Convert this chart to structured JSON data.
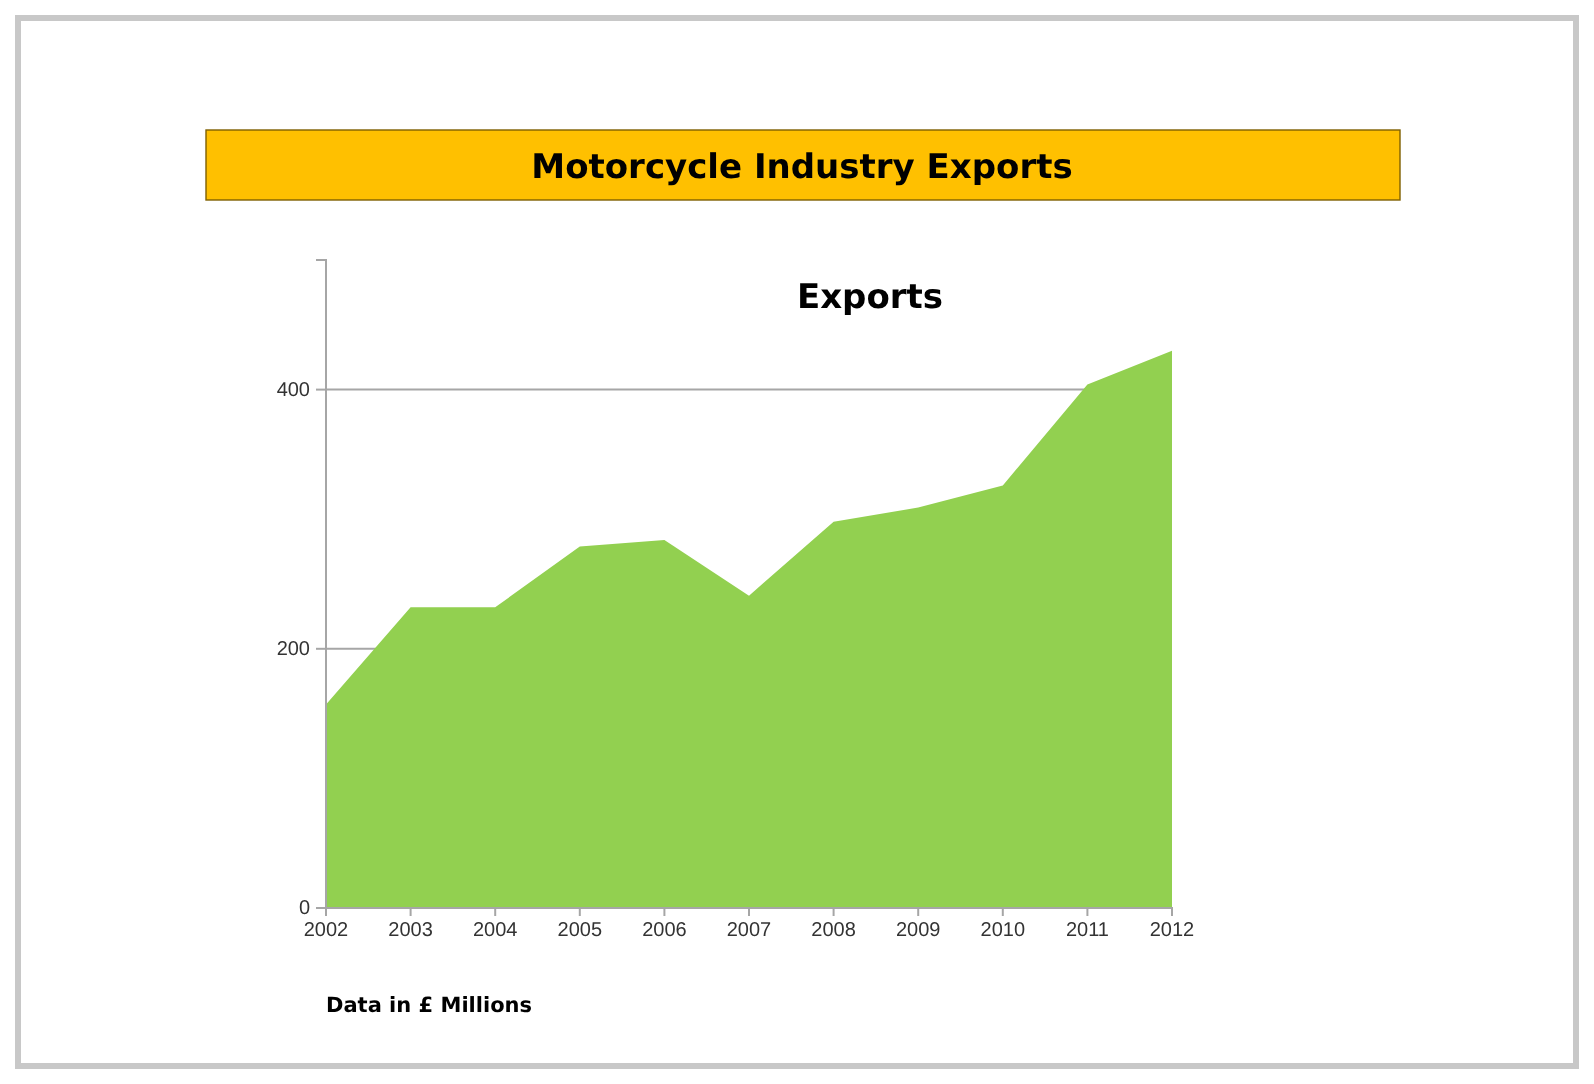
{
  "chart_data": {
    "type": "area",
    "title": "Motorcycle Industry Exports",
    "subtitle": "Exports",
    "categories": [
      "2002",
      "2003",
      "2004",
      "2005",
      "2006",
      "2007",
      "2008",
      "2009",
      "2010",
      "2011",
      "2012"
    ],
    "series": [
      {
        "color": "#92d050",
        "values": [
          157,
          232,
          232,
          279,
          284,
          241,
          298,
          309,
          326,
          404,
          430
        ]
      }
    ],
    "ylim": [
      0,
      500
    ],
    "yticks": [
      0,
      200,
      400
    ],
    "grid": "y",
    "annotations": [
      "Data in £ Millions"
    ]
  }
}
